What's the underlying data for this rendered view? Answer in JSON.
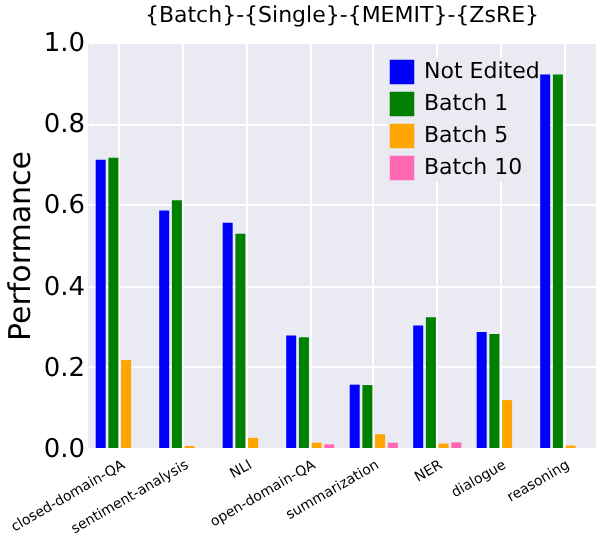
{
  "chart_data": {
    "type": "bar",
    "title": "{Batch}-{Single}-{MEMIT}-{ZsRE}",
    "ylabel": "Performance",
    "categories": [
      "closed-domain-QA",
      "sentiment-analysis",
      "NLI",
      "open-domain-QA",
      "summarization",
      "NER",
      "dialogue",
      "reasoning"
    ],
    "series": [
      {
        "name": "Not Edited",
        "color": "#0000ff",
        "values": [
          0.71,
          0.585,
          0.555,
          0.277,
          0.156,
          0.302,
          0.286,
          0.92
        ]
      },
      {
        "name": "Batch 1",
        "color": "#008000",
        "values": [
          0.715,
          0.61,
          0.528,
          0.273,
          0.155,
          0.322,
          0.281,
          0.92
        ]
      },
      {
        "name": "Batch 5",
        "color": "#ffa500",
        "values": [
          0.217,
          0.005,
          0.025,
          0.013,
          0.034,
          0.011,
          0.118,
          0.006
        ]
      },
      {
        "name": "Batch 10",
        "color": "#ff69b4",
        "values": [
          0.0,
          0.0,
          0.0,
          0.009,
          0.013,
          0.014,
          0.0,
          0.0
        ]
      }
    ],
    "ylim": [
      0,
      1
    ],
    "yticks": [
      {
        "value": 0,
        "label": "0.0"
      },
      0.2,
      0.4,
      0.6,
      0.8,
      {
        "value": 1,
        "label": "1.0"
      }
    ],
    "grid": true,
    "legend": "top right"
  }
}
